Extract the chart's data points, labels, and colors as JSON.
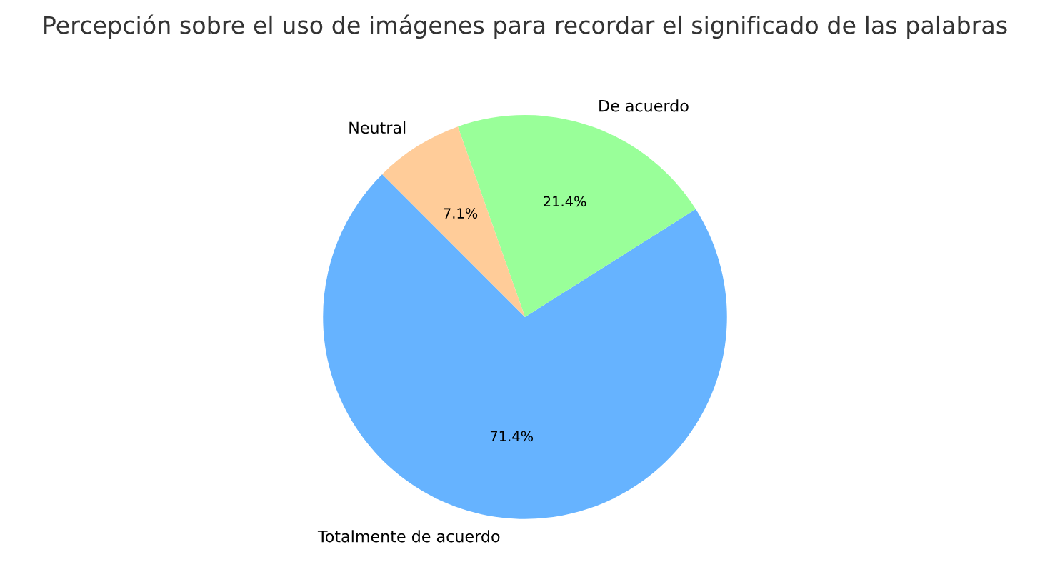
{
  "chart_data": {
    "type": "pie",
    "title": "Percepción sobre el uso de imágenes para recordar el significado de las palabras",
    "categories": [
      "Totalmente de acuerdo",
      "De acuerdo",
      "Neutral"
    ],
    "values": [
      71.4,
      21.4,
      7.1
    ],
    "colors": [
      "#66b3ff",
      "#99ff99",
      "#ffcc99"
    ],
    "value_labels": [
      "71.4%",
      "21.4%",
      "7.1%"
    ]
  }
}
